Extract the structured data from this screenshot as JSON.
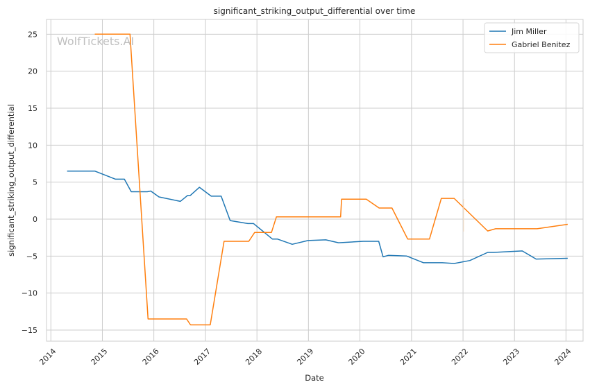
{
  "watermark": "WolfTickets.AI",
  "chart_data": {
    "type": "line",
    "title": "significant_striking_output_differential over time",
    "xlabel": "Date",
    "ylabel": "significant_striking_output_differential",
    "x_axis_type": "time",
    "xlim": [
      "2013-12-01",
      "2024-05-01"
    ],
    "ylim": [
      -16.5,
      27.0
    ],
    "x_ticks": [
      "2014",
      "2015",
      "2016",
      "2017",
      "2018",
      "2019",
      "2020",
      "2021",
      "2022",
      "2023",
      "2024"
    ],
    "y_ticks": [
      -15,
      -10,
      -5,
      0,
      5,
      10,
      15,
      20,
      25
    ],
    "y_tick_labels": [
      "−15",
      "−10",
      "−5",
      "0",
      "5",
      "10",
      "15",
      "20",
      "25"
    ],
    "grid": true,
    "legend_position": "upper right",
    "series": [
      {
        "name": "Jim Miller",
        "color": "#1f77b4",
        "points": [
          [
            "2014-04-26",
            6.5
          ],
          [
            "2014-11-08",
            6.5
          ],
          [
            "2015-04-04",
            5.4
          ],
          [
            "2015-06-06",
            5.4
          ],
          [
            "2015-07-25",
            3.7
          ],
          [
            "2015-11-15",
            3.7
          ],
          [
            "2015-12-10",
            3.8
          ],
          [
            "2016-02-06",
            3.0
          ],
          [
            "2016-07-07",
            2.4
          ],
          [
            "2016-08-27",
            3.2
          ],
          [
            "2016-09-15",
            3.2
          ],
          [
            "2016-11-19",
            4.3
          ],
          [
            "2017-02-11",
            3.1
          ],
          [
            "2017-04-22",
            3.1
          ],
          [
            "2017-06-25",
            -0.2
          ],
          [
            "2017-10-28",
            -0.6
          ],
          [
            "2017-12-08",
            -0.6
          ],
          [
            "2018-04-21",
            -2.7
          ],
          [
            "2018-05-27",
            -2.7
          ],
          [
            "2018-09-08",
            -3.4
          ],
          [
            "2018-12-29",
            -2.9
          ],
          [
            "2019-05-04",
            -2.8
          ],
          [
            "2019-08-03",
            -3.2
          ],
          [
            "2020-01-25",
            -3.0
          ],
          [
            "2020-05-13",
            -3.0
          ],
          [
            "2020-06-13",
            -5.1
          ],
          [
            "2020-07-20",
            -4.9
          ],
          [
            "2020-11-28",
            -5.0
          ],
          [
            "2021-03-27",
            -5.9
          ],
          [
            "2021-08-07",
            -5.9
          ],
          [
            "2021-10-30",
            -6.0
          ],
          [
            "2022-02-19",
            -5.6
          ],
          [
            "2022-06-25",
            -4.5
          ],
          [
            "2022-08-06",
            -4.5
          ],
          [
            "2023-02-25",
            -4.3
          ],
          [
            "2023-06-03",
            -5.4
          ],
          [
            "2024-01-13",
            -5.3
          ]
        ]
      },
      {
        "name": "Gabriel Benitez",
        "color": "#ff7f0e",
        "points": [
          [
            "2014-11-08",
            25.0
          ],
          [
            "2015-07-16",
            25.0
          ],
          [
            "2015-11-21",
            -13.5
          ],
          [
            "2016-08-20",
            -13.5
          ],
          [
            "2016-09-17",
            -14.3
          ],
          [
            "2017-02-04",
            -14.3
          ],
          [
            "2017-05-13",
            -3.0
          ],
          [
            "2017-11-04",
            -3.0
          ],
          [
            "2017-12-16",
            -1.8
          ],
          [
            "2018-04-14",
            -1.8
          ],
          [
            "2018-05-19",
            0.3
          ],
          [
            "2019-08-17",
            0.3
          ],
          [
            "2019-08-24",
            2.7
          ],
          [
            "2020-02-15",
            2.7
          ],
          [
            "2020-05-16",
            1.5
          ],
          [
            "2020-08-15",
            1.5
          ],
          [
            "2020-12-05",
            -2.7
          ],
          [
            "2021-05-08",
            -2.7
          ],
          [
            "2021-07-31",
            2.8
          ],
          [
            "2021-10-30",
            2.8
          ],
          [
            "2022-06-25",
            -1.6
          ],
          [
            "2022-08-20",
            -1.3
          ],
          [
            "2023-06-10",
            -1.3
          ],
          [
            "2024-01-13",
            -0.7
          ]
        ]
      }
    ]
  }
}
